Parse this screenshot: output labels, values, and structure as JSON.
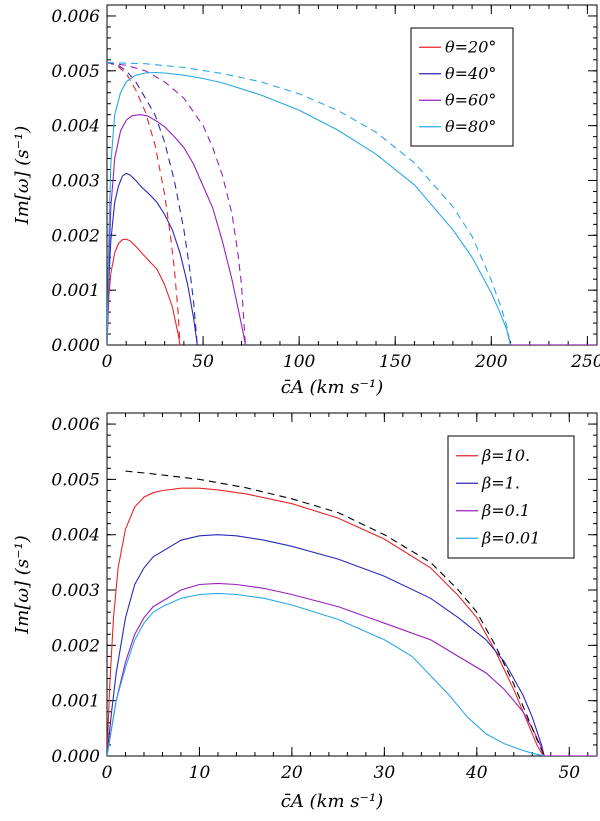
{
  "chart_data": [
    {
      "type": "line",
      "xlabel": "c̄A (km s⁻¹)",
      "ylabel": "Im[ω] (s⁻¹)",
      "xlim": [
        0,
        255
      ],
      "ylim": [
        0,
        0.0062
      ],
      "xticks": [
        "0",
        "50",
        "100",
        "150",
        "200",
        "250"
      ],
      "yticks": [
        "0.000",
        "0.001",
        "0.002",
        "0.003",
        "0.004",
        "0.005",
        "0.006"
      ],
      "legend_position": "top-right",
      "series": [
        {
          "name": "θ=20°",
          "color": "#e8262a",
          "style": "solid",
          "x": [
            0,
            1,
            2,
            4,
            6,
            8,
            10,
            12,
            15,
            18,
            22,
            26,
            30,
            34,
            37,
            38
          ],
          "y": [
            0,
            0.0009,
            0.0013,
            0.00168,
            0.00185,
            0.00192,
            0.00193,
            0.0019,
            0.0018,
            0.00168,
            0.00153,
            0.00138,
            0.0011,
            0.0007,
            0.0002,
            0
          ]
        },
        {
          "name": "θ=20° (dashed)",
          "color": "#e8262a",
          "style": "dashed",
          "x": [
            0,
            5,
            10,
            15,
            20,
            25,
            30,
            33,
            35,
            37,
            38
          ],
          "y": [
            0.00515,
            0.0051,
            0.00495,
            0.00465,
            0.00425,
            0.00365,
            0.00275,
            0.002,
            0.0014,
            0.0006,
            0
          ]
        },
        {
          "name": "θ=40°",
          "color": "#2a2ab8",
          "style": "solid",
          "x": [
            0,
            1,
            2,
            4,
            6,
            8,
            10,
            12,
            15,
            18,
            22,
            26,
            30,
            34,
            38,
            42,
            45,
            47
          ],
          "y": [
            0,
            0.0012,
            0.0019,
            0.0026,
            0.0029,
            0.00308,
            0.00313,
            0.0031,
            0.003,
            0.00288,
            0.00275,
            0.0026,
            0.00238,
            0.0021,
            0.00168,
            0.0011,
            0.0005,
            0
          ]
        },
        {
          "name": "θ=40° (dashed)",
          "color": "#2a2ab8",
          "style": "dashed",
          "x": [
            0,
            5,
            10,
            15,
            20,
            25,
            30,
            35,
            40,
            43,
            45,
            47
          ],
          "y": [
            0.00515,
            0.00512,
            0.005,
            0.0048,
            0.0045,
            0.0042,
            0.0037,
            0.003,
            0.0021,
            0.0014,
            0.0008,
            0
          ]
        },
        {
          "name": "θ=60°",
          "color": "#9a1fbf",
          "style": "solid",
          "x": [
            0,
            1,
            2,
            4,
            7,
            10,
            13,
            17,
            21,
            25,
            30,
            35,
            40,
            45,
            50,
            55,
            60,
            65,
            68,
            71,
            72
          ],
          "y": [
            0,
            0.0015,
            0.0025,
            0.0034,
            0.0039,
            0.0041,
            0.00418,
            0.0042,
            0.00418,
            0.0041,
            0.00398,
            0.0038,
            0.0036,
            0.0033,
            0.0029,
            0.0025,
            0.0019,
            0.0012,
            0.0007,
            0.0002,
            0
          ]
        },
        {
          "name": "θ=60° (dashed)",
          "color": "#9a1fbf",
          "style": "dashed",
          "x": [
            0,
            10,
            20,
            30,
            40,
            50,
            55,
            60,
            65,
            68,
            70,
            72
          ],
          "y": [
            0.00515,
            0.0051,
            0.005,
            0.0048,
            0.0045,
            0.004,
            0.0036,
            0.0031,
            0.0024,
            0.0017,
            0.0011,
            0
          ]
        },
        {
          "name": "θ=80°",
          "color": "#2aa8e8",
          "style": "solid",
          "x": [
            0,
            1,
            2,
            4,
            7,
            10,
            15,
            20,
            25,
            30,
            40,
            50,
            60,
            80,
            100,
            120,
            140,
            160,
            180,
            190,
            200,
            205,
            208,
            210
          ],
          "y": [
            0,
            0.002,
            0.0033,
            0.0042,
            0.0046,
            0.0048,
            0.00492,
            0.00496,
            0.00497,
            0.00496,
            0.00492,
            0.00486,
            0.00478,
            0.00456,
            0.00428,
            0.00392,
            0.00348,
            0.00292,
            0.0021,
            0.0016,
            0.00095,
            0.00055,
            0.00028,
            0
          ]
        },
        {
          "name": "θ=80° (dashed)",
          "color": "#2aa8e8",
          "style": "dashed",
          "x": [
            0,
            20,
            40,
            60,
            80,
            100,
            120,
            140,
            160,
            180,
            190,
            200,
            205,
            208,
            210
          ],
          "y": [
            0.00515,
            0.00513,
            0.00506,
            0.00495,
            0.0048,
            0.00458,
            0.00428,
            0.00388,
            0.00332,
            0.00252,
            0.00198,
            0.00118,
            0.0007,
            0.00035,
            0
          ]
        }
      ]
    },
    {
      "type": "line",
      "xlabel": "c̄A (km s⁻¹)",
      "ylabel": "Im[ω] (s⁻¹)",
      "xlim": [
        0,
        53
      ],
      "ylim": [
        0,
        0.0062
      ],
      "xticks": [
        "0",
        "10",
        "20",
        "30",
        "40",
        "50"
      ],
      "yticks": [
        "0.000",
        "0.001",
        "0.002",
        "0.003",
        "0.004",
        "0.005",
        "0.006"
      ],
      "legend_position": "top-right",
      "series": [
        {
          "name": "β=10.",
          "color": "#e8262a",
          "style": "solid",
          "x": [
            0,
            0.3,
            0.7,
            1.2,
            2,
            3,
            4,
            5,
            6,
            8,
            10,
            12,
            15,
            20,
            25,
            30,
            35,
            38,
            40,
            42,
            44,
            45.5,
            46.5,
            47,
            47.3
          ],
          "y": [
            0,
            0.0013,
            0.0025,
            0.0034,
            0.0041,
            0.0045,
            0.00468,
            0.00476,
            0.0048,
            0.00484,
            0.00484,
            0.00481,
            0.00474,
            0.00456,
            0.0043,
            0.00392,
            0.0034,
            0.0029,
            0.0025,
            0.0019,
            0.0012,
            0.0006,
            0.0002,
            5e-05,
            0
          ]
        },
        {
          "name": "β=1.",
          "color": "#2a2ab8",
          "style": "solid",
          "x": [
            0,
            0.5,
            1,
            2,
            3,
            4,
            5,
            6,
            8,
            10,
            12,
            14,
            17,
            20,
            25,
            30,
            35,
            38,
            41,
            43,
            45,
            46,
            47,
            47.3
          ],
          "y": [
            0,
            0.0008,
            0.0015,
            0.0025,
            0.0031,
            0.0034,
            0.0036,
            0.0037,
            0.0039,
            0.00398,
            0.004,
            0.00398,
            0.0039,
            0.00379,
            0.00356,
            0.00325,
            0.00285,
            0.0025,
            0.0021,
            0.0017,
            0.0011,
            0.0007,
            0.0002,
            0
          ]
        },
        {
          "name": "β=0.1",
          "color": "#9a1fbf",
          "style": "solid",
          "x": [
            0,
            0.5,
            1,
            2,
            3,
            4,
            5,
            6,
            8,
            10,
            12,
            14,
            17,
            20,
            25,
            30,
            35,
            38,
            41,
            43,
            45,
            46,
            47,
            47.3
          ],
          "y": [
            0,
            0.0005,
            0.001,
            0.0017,
            0.0022,
            0.0025,
            0.0027,
            0.0028,
            0.003,
            0.0031,
            0.00312,
            0.0031,
            0.00303,
            0.00292,
            0.0027,
            0.0024,
            0.0021,
            0.0018,
            0.0015,
            0.0012,
            0.0008,
            0.0005,
            0.00015,
            0
          ]
        },
        {
          "name": "β=0.01",
          "color": "#2aa8e8",
          "style": "solid",
          "x": [
            0,
            0.5,
            1,
            2,
            3,
            4,
            5,
            6,
            8,
            10,
            12,
            14,
            17,
            20,
            25,
            30,
            33,
            35,
            37,
            39,
            41,
            43,
            45,
            46,
            47.3
          ],
          "y": [
            0,
            0.0005,
            0.001,
            0.0016,
            0.0021,
            0.0024,
            0.0026,
            0.0027,
            0.00285,
            0.00292,
            0.00294,
            0.00292,
            0.00285,
            0.00273,
            0.00247,
            0.0021,
            0.0018,
            0.00145,
            0.0011,
            0.0007,
            0.0004,
            0.00022,
            0.0001,
            5e-05,
            0
          ]
        },
        {
          "name": "",
          "color": "#000000",
          "style": "dashed",
          "x": [
            2,
            5,
            10,
            15,
            20,
            25,
            30,
            35,
            38,
            40,
            42,
            44,
            45.5,
            46.5,
            47.3
          ],
          "y": [
            0.00515,
            0.0051,
            0.005,
            0.00485,
            0.00465,
            0.0044,
            0.004,
            0.0035,
            0.003,
            0.0026,
            0.002,
            0.0013,
            0.0007,
            0.0003,
            0
          ]
        }
      ]
    }
  ]
}
